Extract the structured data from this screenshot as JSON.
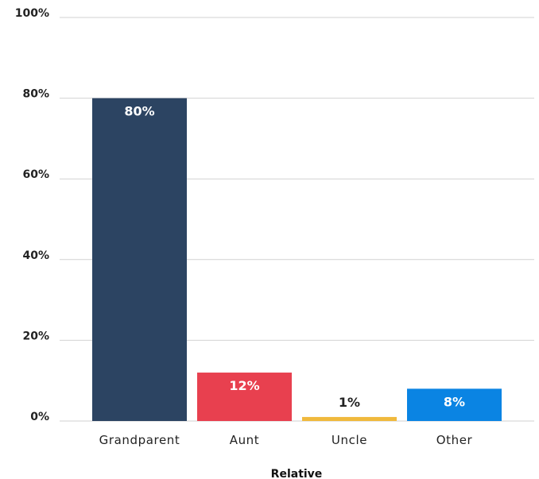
{
  "chart_data": {
    "type": "bar",
    "title": "",
    "xlabel": "Relative",
    "ylabel": "",
    "ylim": [
      0,
      100
    ],
    "yticks": [
      0,
      20,
      40,
      60,
      80,
      100
    ],
    "ytick_labels": [
      "0%",
      "20%",
      "40%",
      "60%",
      "80%",
      "100%"
    ],
    "grid": true,
    "categories": [
      "Grandparent",
      "Aunt",
      "Uncle",
      "Other"
    ],
    "values": [
      80,
      12,
      1,
      8
    ],
    "data_labels": [
      "80%",
      "12%",
      "1%",
      "8%"
    ],
    "colors": [
      "#2c4462",
      "#e8404f",
      "#f0b93d",
      "#0a84e3"
    ],
    "label_colors": [
      "#ffffff",
      "#ffffff",
      "#222222",
      "#ffffff"
    ]
  }
}
